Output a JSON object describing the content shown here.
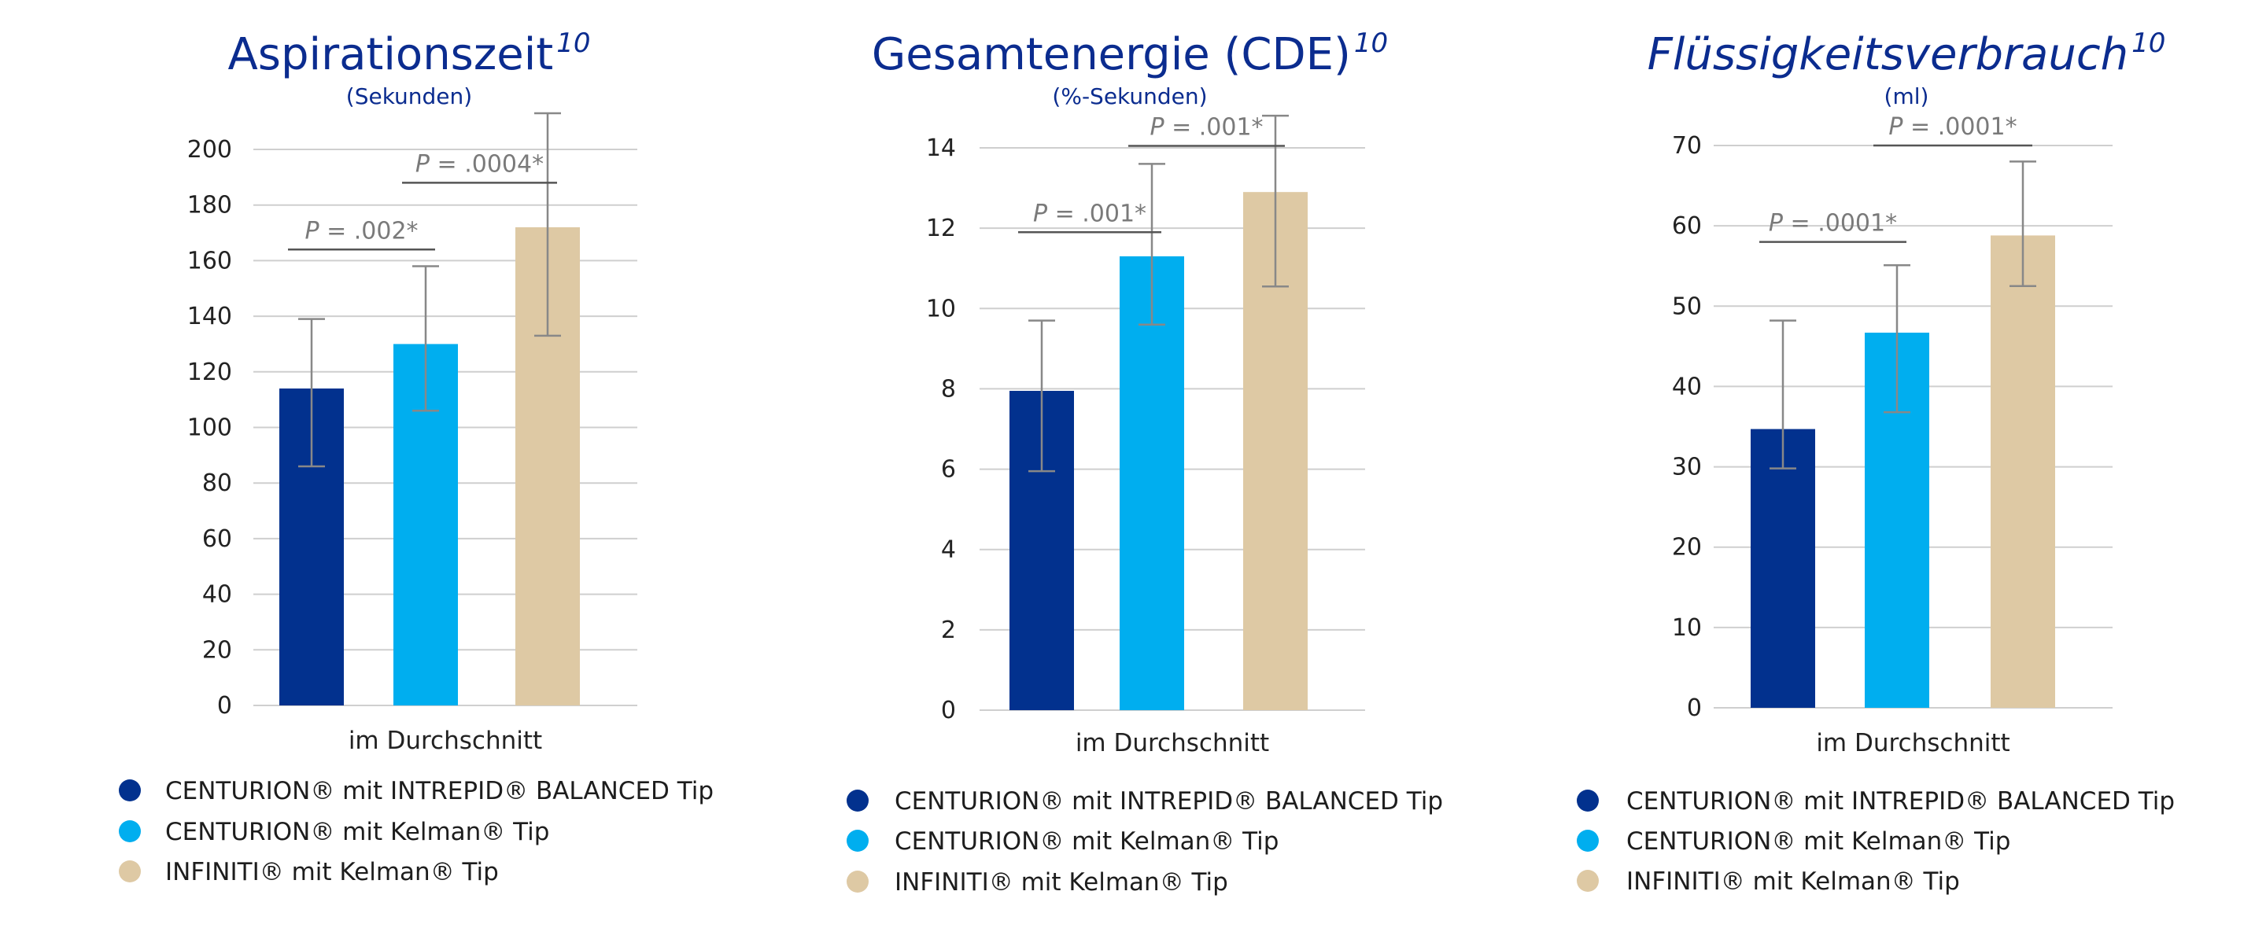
{
  "colors": {
    "centurion_intrepid": "#02318e",
    "centurion_kelman": "#00aeef",
    "infiniti_kelman": "#dec9a4",
    "title": "#0b2c8f",
    "grid": "#cfcfcf",
    "error_bar": "#888888",
    "p_text": "#7a7a7a"
  },
  "chart_data": [
    {
      "type": "bar",
      "title": "Aspirationszeit",
      "title_sup": "10",
      "subtitle": "(Sekunden)",
      "xlabel": "im Durchschnitt",
      "ylim": [
        0,
        200
      ],
      "yticks": [
        "0",
        "20",
        "40",
        "60",
        "80",
        "100",
        "120",
        "140",
        "160",
        "180",
        "200"
      ],
      "grid": true,
      "series": [
        {
          "name": "CENTURION® mit INTREPID® BALANCED Tip",
          "value": 114,
          "err_low": 86,
          "err_high": 139
        },
        {
          "name": "CENTURION® mit Kelman® Tip",
          "value": 130,
          "err_low": 106,
          "err_high": 158
        },
        {
          "name": "INFINITI® mit Kelman® Tip",
          "value": 172,
          "err_low": 133,
          "err_high": 213
        }
      ],
      "pvalues": [
        {
          "from": 0,
          "to": 1,
          "label_italic": "P",
          "label_rest": " = .002*",
          "at": 164
        },
        {
          "from": 1,
          "to": 2,
          "label_italic": "P",
          "label_rest": " = .0004*",
          "at": 188
        }
      ],
      "legend": [
        "CENTURION® mit INTREPID® BALANCED Tip",
        "CENTURION® mit Kelman® Tip",
        "INFINITI® mit Kelman® Tip"
      ]
    },
    {
      "type": "bar",
      "title": "Gesamtenergie (CDE)",
      "title_sup": "10",
      "subtitle": "(%-Sekunden)",
      "xlabel": "im Durchschnitt",
      "ylim": [
        0,
        14
      ],
      "yticks": [
        "0",
        "2",
        "4",
        "6",
        "8",
        "10",
        "12",
        "14"
      ],
      "grid": true,
      "series": [
        {
          "name": "CENTURION® mit INTREPID® BALANCED Tip",
          "value": 7.95,
          "err_low": 5.95,
          "err_high": 9.7
        },
        {
          "name": "CENTURION® mit Kelman® Tip",
          "value": 11.3,
          "err_low": 9.6,
          "err_high": 13.6
        },
        {
          "name": "INFINITI® mit Kelman® Tip",
          "value": 12.9,
          "err_low": 10.55,
          "err_high": 14.8
        }
      ],
      "pvalues": [
        {
          "from": 0,
          "to": 1,
          "label_italic": "P",
          "label_rest": " = .001*",
          "at": 11.9
        },
        {
          "from": 1,
          "to": 2,
          "label_italic": "P",
          "label_rest": " = .001*",
          "at": 14.05
        }
      ],
      "legend": [
        "CENTURION® mit INTREPID® BALANCED Tip",
        "CENTURION® mit Kelman® Tip",
        "INFINITI® mit Kelman® Tip"
      ]
    },
    {
      "type": "bar",
      "title": "Flüssigkeitsverbrauch",
      "title_sup": "10",
      "subtitle": "(ml)",
      "xlabel": "im Durchschnitt",
      "ylim": [
        0,
        70
      ],
      "yticks": [
        "0",
        "10",
        "20",
        "30",
        "40",
        "50",
        "60",
        "70"
      ],
      "grid": true,
      "series": [
        {
          "name": "CENTURION® mit INTREPID® BALANCED Tip",
          "value": 34.7,
          "err_low": 29.8,
          "err_high": 48.2
        },
        {
          "name": "CENTURION® mit Kelman® Tip",
          "value": 46.7,
          "err_low": 36.8,
          "err_high": 55.1
        },
        {
          "name": "INFINITI® mit Kelman® Tip",
          "value": 58.8,
          "err_low": 52.5,
          "err_high": 68.0
        }
      ],
      "pvalues": [
        {
          "from": 0,
          "to": 1,
          "label_italic": "P",
          "label_rest": " = .0001*",
          "at": 58.0
        },
        {
          "from": 1,
          "to": 2,
          "label_italic": "P",
          "label_rest": " = .0001*",
          "at": 70.0
        }
      ],
      "legend": [
        "CENTURION® mit INTREPID® BALANCED Tip",
        "CENTURION® mit Kelman® Tip",
        "INFINITI® mit Kelman® Tip"
      ]
    }
  ]
}
